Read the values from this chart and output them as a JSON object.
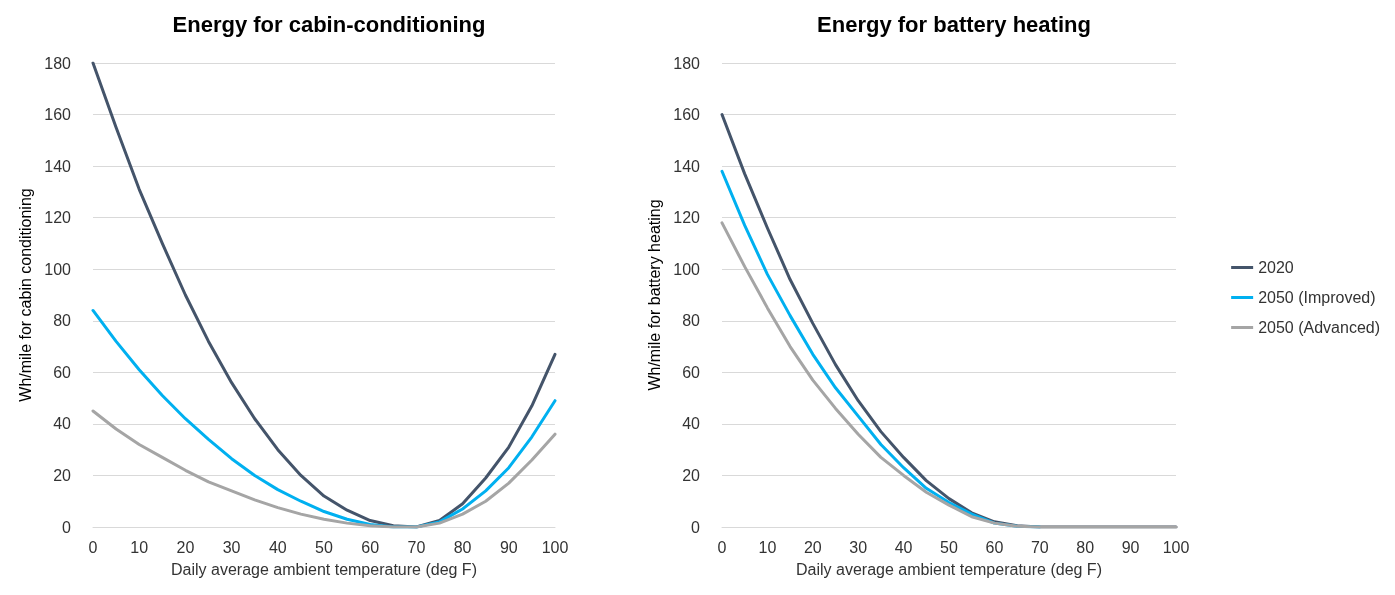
{
  "chart_data": [
    {
      "type": "line",
      "title": "Energy for cabin-conditioning",
      "xlabel": "Daily average ambient temperature (deg F)",
      "ylabel": "Wh/mile for cabin conditioning",
      "x": [
        0,
        5,
        10,
        15,
        20,
        25,
        30,
        35,
        40,
        45,
        50,
        55,
        60,
        65,
        70,
        75,
        80,
        85,
        90,
        95,
        100
      ],
      "series": [
        {
          "color": "#44546a",
          "values": [
            180,
            155,
            131,
            110,
            90,
            72,
            56,
            42,
            30,
            20,
            12,
            6.5,
            2.5,
            0.5,
            0,
            2.5,
            9,
            19,
            31,
            47,
            67
          ]
        },
        {
          "color": "#00b0f0",
          "values": [
            84,
            72,
            61,
            51,
            42,
            34,
            26.5,
            20,
            14.5,
            10,
            6,
            3,
            1,
            0,
            0,
            2,
            7,
            14,
            23,
            35,
            49
          ]
        },
        {
          "color": "#a5a5a5",
          "values": [
            45,
            38,
            32,
            27,
            22,
            17.5,
            14,
            10.5,
            7.5,
            5,
            3,
            1.5,
            0.5,
            0,
            0,
            1.5,
            5,
            10,
            17,
            26,
            36
          ]
        }
      ],
      "xlim": [
        0,
        100
      ],
      "xticks": [
        0,
        10,
        20,
        30,
        40,
        50,
        60,
        70,
        80,
        90,
        100
      ],
      "ylim": [
        0,
        180
      ],
      "yticks": [
        0,
        20,
        40,
        60,
        80,
        100,
        120,
        140,
        160,
        180
      ],
      "grid": "y",
      "legend": false,
      "marker": "none",
      "line_style": "solid"
    },
    {
      "type": "line",
      "title": "Energy for battery heating",
      "xlabel": "Daily average ambient temperature (deg F)",
      "ylabel": "Wh/mile for battery heating",
      "x": [
        0,
        5,
        10,
        15,
        20,
        25,
        30,
        35,
        40,
        45,
        50,
        55,
        60,
        65,
        70,
        75,
        80,
        85,
        90,
        95,
        100
      ],
      "series": [
        {
          "name": "2020",
          "color": "#44546a",
          "values": [
            160,
            137,
            116,
            96,
            79,
            63,
            49,
            37,
            27,
            18,
            11,
            5.5,
            2,
            0.5,
            0,
            0,
            0,
            0,
            0,
            0,
            0
          ]
        },
        {
          "name": "2050 (Improved)",
          "color": "#00b0f0",
          "values": [
            138,
            117,
            98,
            82,
            67,
            54,
            43,
            32,
            23,
            15,
            9.5,
            5,
            1.5,
            0.3,
            0,
            null,
            null,
            null,
            null,
            null,
            null
          ]
        },
        {
          "name": "2050 (Advanced)",
          "color": "#a5a5a5",
          "values": [
            118,
            101,
            85,
            70,
            57,
            46,
            36,
            27,
            20,
            13.5,
            8.5,
            4,
            1.5,
            0.3,
            0,
            0,
            0,
            0,
            0,
            0,
            0
          ]
        }
      ],
      "xlim": [
        0,
        100
      ],
      "xticks": [
        0,
        10,
        20,
        30,
        40,
        50,
        60,
        70,
        80,
        90,
        100
      ],
      "ylim": [
        0,
        180
      ],
      "yticks": [
        0,
        20,
        40,
        60,
        80,
        100,
        120,
        140,
        160,
        180
      ],
      "grid": "y",
      "legend": "right",
      "marker": "none",
      "line_style": "solid"
    }
  ]
}
